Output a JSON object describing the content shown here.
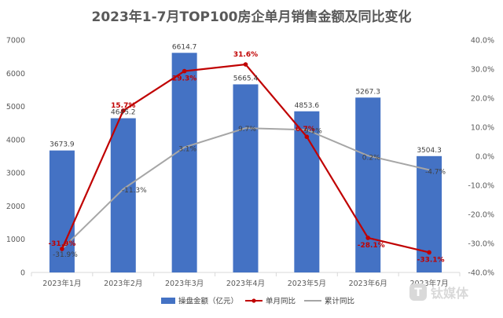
{
  "chart_data": {
    "type": "bar",
    "title": "2023年1-7月TOP100房企单月销售金额及同比变化",
    "categories": [
      "2023年1月",
      "2023年2月",
      "2023年3月",
      "2023年4月",
      "2023年5月",
      "2023年6月",
      "2023年7月"
    ],
    "ylim": [
      0,
      7000
    ],
    "y_ticks": [
      "0",
      "1000",
      "2000",
      "3000",
      "4000",
      "5000",
      "6000",
      "7000"
    ],
    "y2lim": [
      -40,
      40
    ],
    "y2_ticks": [
      "-40.0%",
      "-30.0%",
      "-20.0%",
      "-10.0%",
      "0.0%",
      "10.0%",
      "20.0%",
      "30.0%",
      "40.0%"
    ],
    "grid": false,
    "legend_position": "bottom",
    "series": [
      {
        "name": "操盘金额（亿元）",
        "type": "bar",
        "axis": "left",
        "color": "#4472c4",
        "values": [
          3673.9,
          4645.2,
          6614.7,
          5665.4,
          4853.6,
          5267.3,
          3504.3
        ],
        "labels": [
          "3673.9",
          "4645.2",
          "6614.7",
          "5665.4",
          "4853.6",
          "5267.3",
          "3504.3"
        ]
      },
      {
        "name": "单月同比",
        "type": "line",
        "axis": "right",
        "color": "#c00000",
        "values": [
          -31.9,
          15.7,
          29.3,
          31.6,
          6.7,
          -28.1,
          -33.1
        ],
        "labels": [
          "-31.9%",
          "15.7%",
          "29.3%",
          "31.6%",
          "6.7%",
          "-28.1%",
          "-33.1%"
        ]
      },
      {
        "name": "累计同比",
        "type": "line",
        "axis": "right",
        "color": "#a6a6a6",
        "values": [
          -31.9,
          -11.3,
          3.1,
          9.7,
          9.1,
          0.2,
          -4.7
        ],
        "labels": [
          "-31.9%",
          "-11.3%",
          "3.1%",
          "9.7%",
          "9.1%",
          "0.2%",
          "-4.7%"
        ]
      }
    ]
  },
  "watermark": "钛媒体"
}
